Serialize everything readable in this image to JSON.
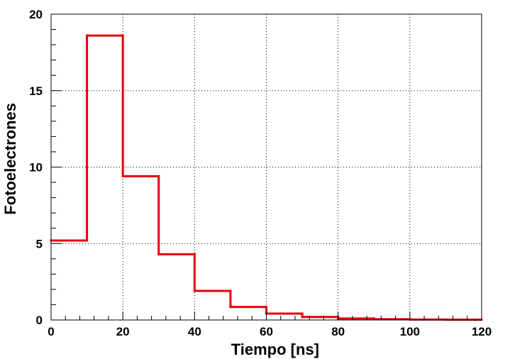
{
  "chart_data": {
    "type": "histogram",
    "title": "",
    "xlabel": "Tiempo [ns]",
    "ylabel": "Fotoelectrones",
    "xlim": [
      0,
      120
    ],
    "ylim": [
      0,
      20
    ],
    "x_ticks": [
      0,
      20,
      40,
      60,
      80,
      100,
      120
    ],
    "x_tick_labels": [
      "0",
      "20",
      "40",
      "60",
      "80",
      "100",
      "120"
    ],
    "y_ticks": [
      0,
      5,
      10,
      15,
      20
    ],
    "y_tick_labels": [
      "0",
      "5",
      "10",
      "15",
      "20"
    ],
    "grid": true,
    "bin_edges": [
      0,
      10,
      20,
      30,
      40,
      50,
      60,
      70,
      80,
      90,
      100,
      110,
      120
    ],
    "values": [
      5.2,
      18.6,
      9.4,
      4.3,
      1.9,
      0.85,
      0.42,
      0.2,
      0.1,
      0.05,
      0.03,
      0.02
    ],
    "line_color": "#e8000b"
  }
}
